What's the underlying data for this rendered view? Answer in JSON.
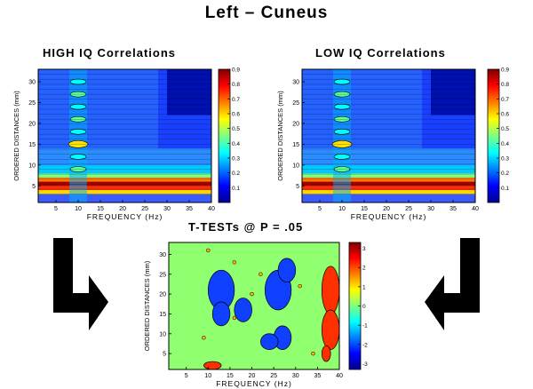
{
  "main_title": "Left – Cuneus",
  "chart_data": [
    {
      "type": "heatmap",
      "title": "HIGH IQ Correlations",
      "xlabel": "FREQUENCY (Hz)",
      "ylabel": "ORDERED DISTANCES (mm)",
      "xlim": [
        1,
        40
      ],
      "ylim": [
        1,
        33
      ],
      "xticks": [
        5,
        10,
        15,
        20,
        25,
        30,
        35,
        40
      ],
      "yticks": [
        5,
        10,
        15,
        20,
        25,
        30
      ],
      "colorbar": {
        "range": [
          0,
          0.9
        ],
        "ticks": [
          0.1,
          0.2,
          0.3,
          0.4,
          0.5,
          0.6,
          0.7,
          0.8,
          0.9
        ]
      },
      "colormap": "jet"
    },
    {
      "type": "heatmap",
      "title": "LOW IQ Correlations",
      "xlabel": "FREQUENCY (Hz)",
      "ylabel": "ORDERED DISTANCES (mm)",
      "xlim": [
        1,
        40
      ],
      "ylim": [
        1,
        33
      ],
      "xticks": [
        5,
        10,
        15,
        20,
        25,
        30,
        35,
        40
      ],
      "yticks": [
        5,
        10,
        15,
        20,
        25,
        30
      ],
      "colorbar": {
        "range": [
          0,
          0.9
        ],
        "ticks": [
          0.1,
          0.2,
          0.3,
          0.4,
          0.5,
          0.6,
          0.7,
          0.8,
          0.9
        ]
      },
      "colormap": "jet"
    },
    {
      "type": "heatmap",
      "title": "T-TESTs @ P = .05",
      "xlabel": "FREQUENCY (Hz)",
      "ylabel": "ORDERED DISTANCES (mm)",
      "xlim": [
        1,
        40
      ],
      "ylim": [
        1,
        33
      ],
      "xticks": [
        5,
        10,
        15,
        20,
        25,
        30,
        35,
        40
      ],
      "yticks": [
        5,
        10,
        15,
        20,
        25,
        30
      ],
      "colorbar": {
        "range": [
          -3.3,
          3.3
        ],
        "ticks": [
          -3,
          -2,
          -1,
          0,
          1,
          2,
          3
        ]
      },
      "colormap": "jet"
    }
  ]
}
